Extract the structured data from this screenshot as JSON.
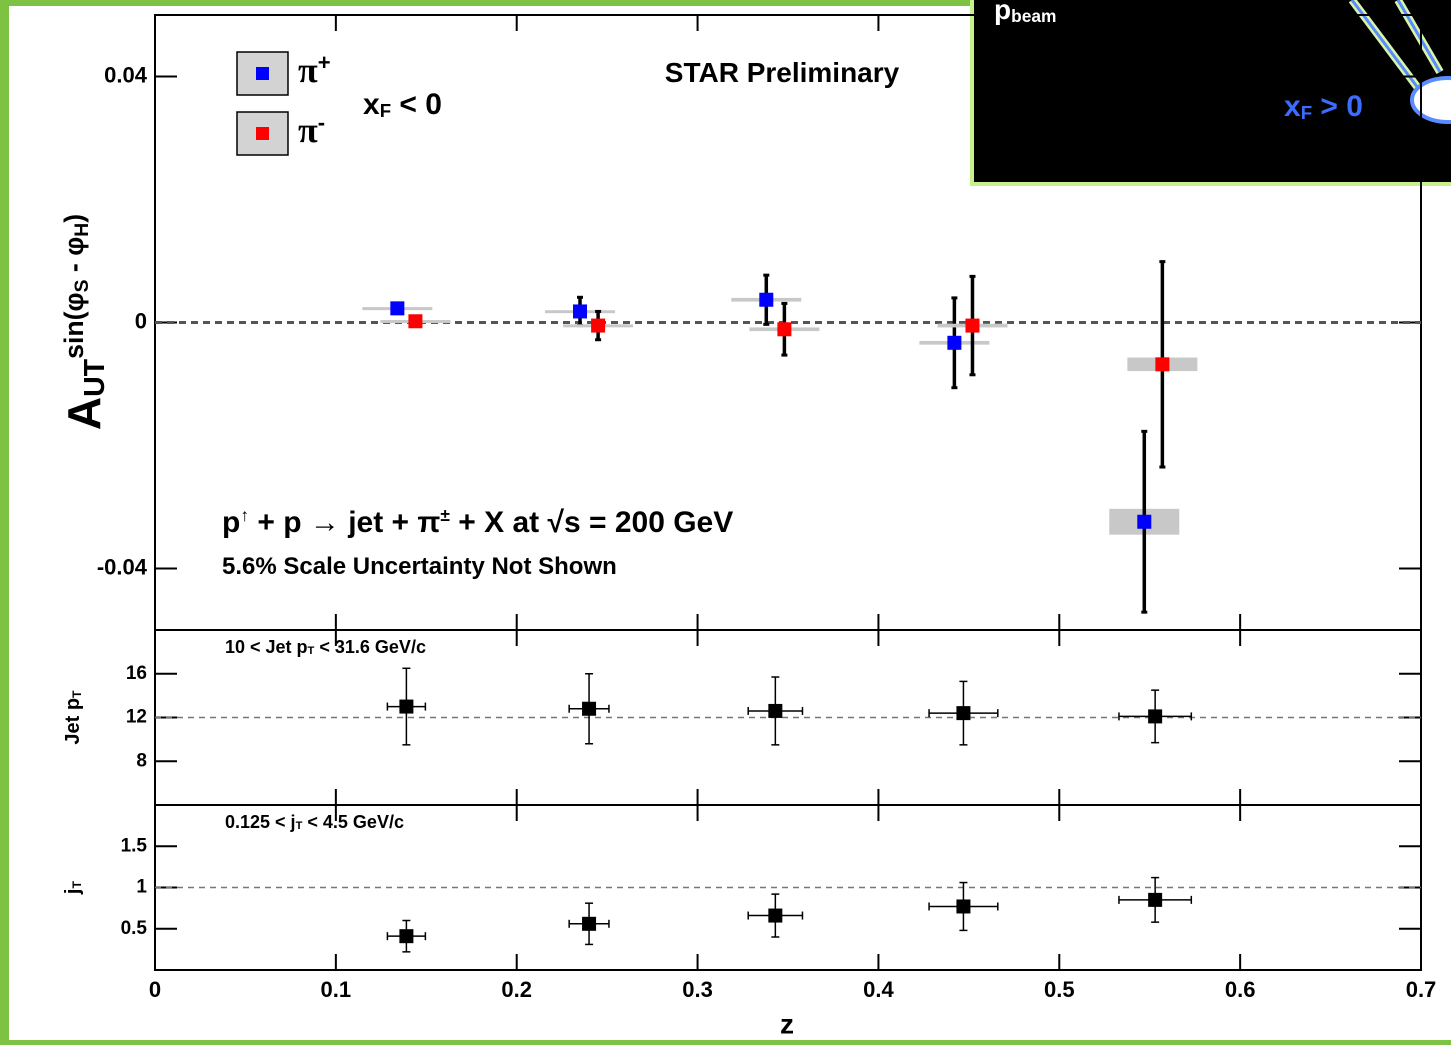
{
  "chart_data": [
    {
      "type": "scatter",
      "title": [
        {
          "text": "STAR Preliminary"
        }
      ],
      "ylabel": [
        {
          "text": "A"
        },
        {
          "text": "UT",
          "shift": "sub"
        },
        {
          "text": "sin(φ",
          "shift": "super"
        },
        {
          "text": "S",
          "shift": "sub2"
        },
        {
          "text": " - φ",
          "shift": "super"
        },
        {
          "text": "H",
          "shift": "sub2"
        },
        {
          "text": ")",
          "shift": "super"
        }
      ],
      "xlim": [
        0,
        0.7
      ],
      "ylim": [
        -0.05,
        0.05
      ],
      "yticks": [
        -0.04,
        0,
        0.04
      ],
      "hline": 0,
      "legend_note": [
        {
          "text": "x"
        },
        {
          "text": "F",
          "shift": "sub"
        },
        {
          "text": " < 0"
        }
      ],
      "annotations": [
        [
          {
            "text": "p"
          },
          {
            "text": "↑",
            "shift": "super"
          },
          {
            "text": " + p  → jet + π"
          },
          {
            "text": "±",
            "shift": "super"
          },
          {
            "text": " + X at  √s = 200 GeV"
          }
        ],
        [
          {
            "text": "5.6% Scale Uncertainty Not Shown"
          }
        ]
      ],
      "series": [
        {
          "name": "π",
          "name_sup": "+",
          "color": "#0000ff",
          "x": [
            0.134,
            0.235,
            0.338,
            0.442,
            0.547
          ],
          "values": [
            0.0023,
            0.0018,
            0.0037,
            -0.0033,
            -0.0324
          ],
          "yerr": [
            0.0003,
            0.0023,
            0.004,
            0.0073,
            0.0147
          ],
          "syst": [
            0.0002,
            0.0002,
            0.0003,
            0.0003,
            0.0021
          ]
        },
        {
          "name": "π",
          "name_sup": "-",
          "color": "#ff0000",
          "x": [
            0.144,
            0.245,
            0.348,
            0.452,
            0.557
          ],
          "values": [
            0.0002,
            -0.0005,
            -0.0011,
            -0.0005,
            -0.0068
          ],
          "yerr": [
            0.0003,
            0.0023,
            0.0042,
            0.008,
            0.0167
          ],
          "syst": [
            0.0002,
            0.0002,
            0.0003,
            0.0003,
            0.0011
          ]
        }
      ]
    },
    {
      "type": "scatter",
      "title": [
        {
          "text": "10 < Jet p"
        },
        {
          "text": "T",
          "shift": "sub"
        },
        {
          "text": " < 31.6 GeV/c"
        }
      ],
      "ylabel": [
        {
          "text": "Jet p"
        },
        {
          "text": "T",
          "shift": "sub"
        }
      ],
      "xlim": [
        0,
        0.7
      ],
      "ylim": [
        4,
        20
      ],
      "yticks": [
        8,
        12,
        16
      ],
      "hline": 12,
      "series": [
        {
          "color": "#000000",
          "x": [
            0.139,
            0.24,
            0.343,
            0.447,
            0.553
          ],
          "values": [
            13.0,
            12.8,
            12.6,
            12.4,
            12.1
          ],
          "xerr": [
            0.0105,
            0.011,
            0.015,
            0.019,
            0.02
          ],
          "yerr": [
            3.5,
            3.2,
            3.1,
            2.9,
            2.4
          ]
        }
      ]
    },
    {
      "type": "scatter",
      "title": [
        {
          "text": "0.125 < j"
        },
        {
          "text": "T",
          "shift": "sub"
        },
        {
          "text": " < 4.5 GeV/c"
        }
      ],
      "ylabel": [
        {
          "text": "j"
        },
        {
          "text": "T",
          "shift": "sub"
        }
      ],
      "xlabel": "z",
      "xlim": [
        0,
        0.7
      ],
      "ylim": [
        0,
        2
      ],
      "yticks": [
        0.5,
        1,
        1.5
      ],
      "hline": 1,
      "xticks": [
        0,
        0.1,
        0.2,
        0.3,
        0.4,
        0.5,
        0.6,
        0.7
      ],
      "series": [
        {
          "color": "#000000",
          "x": [
            0.139,
            0.24,
            0.343,
            0.447,
            0.553
          ],
          "values": [
            0.41,
            0.56,
            0.66,
            0.77,
            0.85
          ],
          "xerr": [
            0.0105,
            0.011,
            0.015,
            0.019,
            0.02
          ],
          "yerr": [
            0.19,
            0.25,
            0.26,
            0.29,
            0.27
          ]
        }
      ]
    }
  ],
  "inset": {
    "beam": [
      {
        "text": "p"
      },
      {
        "text": "beam",
        "shift": "sub"
      }
    ],
    "xf": [
      {
        "text": "x"
      },
      {
        "text": "F",
        "shift": "sub"
      },
      {
        "text": " > 0"
      }
    ]
  }
}
